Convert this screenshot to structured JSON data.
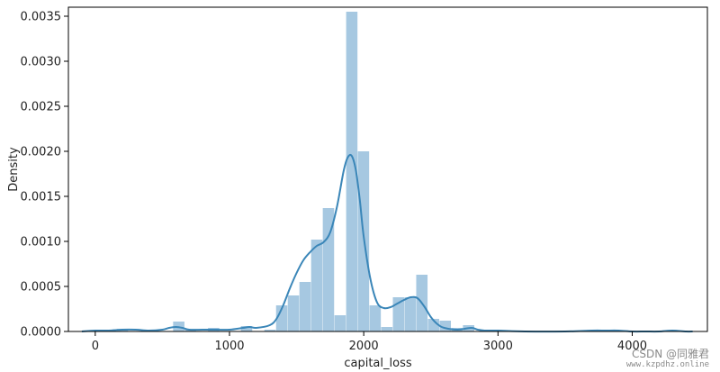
{
  "chart_data": {
    "type": "bar",
    "title": "",
    "xlabel": "capital_loss",
    "ylabel": "Density",
    "xlim": [
      -200,
      4560
    ],
    "ylim": [
      0,
      0.0036
    ],
    "xticks": [
      0,
      1000,
      2000,
      3000,
      4000
    ],
    "xtick_labels": [
      "0",
      "1000",
      "2000",
      "3000",
      "4000"
    ],
    "yticks": [
      0,
      0.0005,
      0.001,
      0.0015,
      0.002,
      0.0025,
      0.003,
      0.0035
    ],
    "ytick_labels": [
      "0.0000",
      "0.0005",
      "0.0010",
      "0.0015",
      "0.0020",
      "0.0025",
      "0.0030",
      "0.0035"
    ],
    "grid": false,
    "legend": "none",
    "colors": {
      "bar": "#a6c8e1",
      "kde": "#3a86b8",
      "axis": "#000000"
    },
    "histogram": {
      "bins": [
        {
          "x0": 160,
          "x1": 247,
          "density": 3e-05
        },
        {
          "x0": 580,
          "x1": 667,
          "density": 0.00011
        },
        {
          "x0": 667,
          "x1": 754,
          "density": 2e-05
        },
        {
          "x0": 840,
          "x1": 927,
          "density": 4e-05
        },
        {
          "x0": 1085,
          "x1": 1172,
          "density": 6e-05
        },
        {
          "x0": 1260,
          "x1": 1347,
          "density": 2e-05
        },
        {
          "x0": 1347,
          "x1": 1434,
          "density": 0.00029
        },
        {
          "x0": 1434,
          "x1": 1521,
          "density": 0.0004
        },
        {
          "x0": 1521,
          "x1": 1608,
          "density": 0.00055
        },
        {
          "x0": 1608,
          "x1": 1695,
          "density": 0.00102
        },
        {
          "x0": 1695,
          "x1": 1782,
          "density": 0.00137
        },
        {
          "x0": 1782,
          "x1": 1869,
          "density": 0.00018
        },
        {
          "x0": 1869,
          "x1": 1956,
          "density": 0.00355
        },
        {
          "x0": 1956,
          "x1": 2043,
          "density": 0.002
        },
        {
          "x0": 2043,
          "x1": 2130,
          "density": 0.00029
        },
        {
          "x0": 2130,
          "x1": 2217,
          "density": 5e-05
        },
        {
          "x0": 2217,
          "x1": 2304,
          "density": 0.00038
        },
        {
          "x0": 2304,
          "x1": 2391,
          "density": 0.00038
        },
        {
          "x0": 2391,
          "x1": 2478,
          "density": 0.00063
        },
        {
          "x0": 2478,
          "x1": 2565,
          "density": 0.00014
        },
        {
          "x0": 2565,
          "x1": 2652,
          "density": 0.00012
        },
        {
          "x0": 2652,
          "x1": 2739,
          "density": 4e-05
        },
        {
          "x0": 2739,
          "x1": 2826,
          "density": 7e-05
        }
      ]
    },
    "kde": {
      "x": [
        -100,
        0,
        100,
        200,
        300,
        400,
        500,
        550,
        600,
        650,
        700,
        800,
        900,
        1000,
        1100,
        1150,
        1200,
        1300,
        1350,
        1400,
        1450,
        1500,
        1550,
        1600,
        1650,
        1700,
        1750,
        1800,
        1850,
        1880,
        1910,
        1940,
        1970,
        2000,
        2050,
        2100,
        2150,
        2200,
        2250,
        2300,
        2350,
        2400,
        2450,
        2500,
        2550,
        2600,
        2700,
        2800,
        2850,
        2900,
        3000,
        3200,
        3500,
        3700,
        3800,
        3900,
        4000,
        4100,
        4200,
        4300,
        4400,
        4450
      ],
      "y": [
        0.0,
        1e-05,
        1e-05,
        2e-05,
        2e-05,
        1e-05,
        2e-05,
        4e-05,
        5e-05,
        4e-05,
        2e-05,
        2e-05,
        2e-05,
        2e-05,
        4e-05,
        5e-05,
        4e-05,
        7e-05,
        0.00014,
        0.00029,
        0.00048,
        0.00065,
        0.00079,
        0.00088,
        0.00095,
        0.00099,
        0.0011,
        0.00138,
        0.00178,
        0.00193,
        0.00195,
        0.0018,
        0.00147,
        0.00105,
        0.00058,
        0.00032,
        0.00026,
        0.00027,
        0.00031,
        0.00035,
        0.00038,
        0.00037,
        0.00028,
        0.00016,
        8e-05,
        4e-05,
        2e-05,
        4e-05,
        2e-05,
        1e-05,
        1e-05,
        0.0,
        0.0,
        1e-05,
        1e-05,
        1e-05,
        0.0,
        0.0,
        0.0,
        1e-05,
        0.0,
        0.0
      ]
    }
  },
  "watermark": {
    "main": "CSDN @同雅君",
    "sub": "www.kzpdhz.online"
  }
}
